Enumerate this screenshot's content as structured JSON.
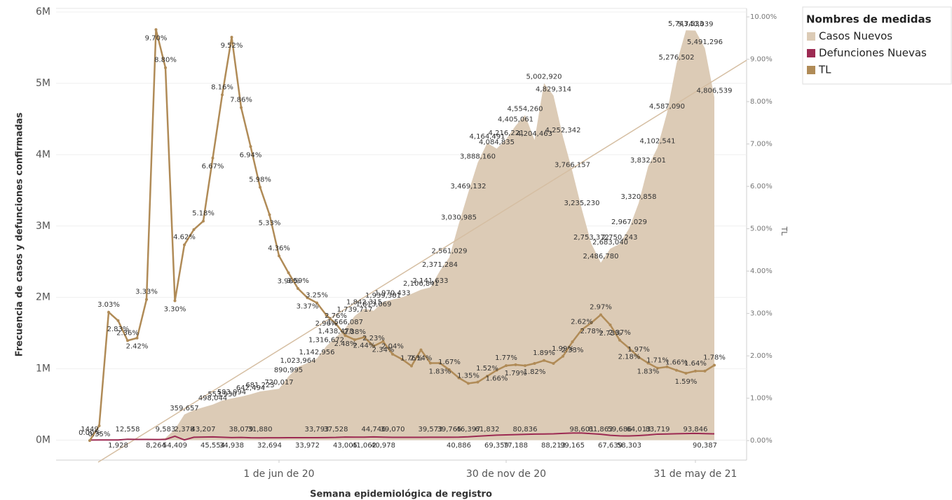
{
  "chart_data": {
    "type": "combo",
    "x_label": "Semana epidemiológica de registro",
    "y_label": "Frecuencia de casos y defunciones confirmadas",
    "y2_label": "TL",
    "categories": [
      null,
      null,
      null,
      null,
      null,
      null,
      null,
      null,
      null,
      null,
      null,
      null,
      null,
      null,
      null,
      null,
      null,
      null,
      null,
      null,
      "1 de jun de 20",
      null,
      null,
      null,
      null,
      null,
      null,
      null,
      null,
      null,
      null,
      null,
      null,
      null,
      null,
      null,
      null,
      null,
      null,
      null,
      null,
      null,
      null,
      null,
      "30 de nov de 20",
      null,
      null,
      null,
      null,
      null,
      null,
      null,
      null,
      null,
      null,
      null,
      null,
      null,
      null,
      null,
      null,
      null,
      null,
      null,
      "31 de may de 21",
      null,
      null
    ],
    "ylim": [
      -280000,
      6050000
    ],
    "yticks": [
      {
        "value": 0,
        "label": "0M"
      },
      {
        "value": 1000000,
        "label": "1M"
      },
      {
        "value": 2000000,
        "label": "2M"
      },
      {
        "value": 3000000,
        "label": "3M"
      },
      {
        "value": 4000000,
        "label": "4M"
      },
      {
        "value": 5000000,
        "label": "5M"
      },
      {
        "value": 6000000,
        "label": "6M"
      }
    ],
    "y2lim": [
      -0.46,
      10.2
    ],
    "y2ticks": [
      {
        "value": 0,
        "label": "0.00%"
      },
      {
        "value": 1,
        "label": "1.00%"
      },
      {
        "value": 2,
        "label": "2.00%"
      },
      {
        "value": 3,
        "label": "3.00%"
      },
      {
        "value": 4,
        "label": "4.00%"
      },
      {
        "value": 5,
        "label": "5.00%"
      },
      {
        "value": 6,
        "label": "6.00%"
      },
      {
        "value": 7,
        "label": "7.00%"
      },
      {
        "value": 8,
        "label": "8.00%"
      },
      {
        "value": 9,
        "label": "9.00%"
      },
      {
        "value": 10,
        "label": "10.00%"
      }
    ],
    "grid": true,
    "legend": {
      "title": "Nombres de medidas",
      "position": "right"
    },
    "series": [
      {
        "name": "Casos Nuevos",
        "type": "area",
        "color": "#dccbb6",
        "values": [
          100,
          300,
          800,
          1500,
          2500,
          4000,
          6000,
          10000,
          30000,
          150000,
          359657,
          420000,
          460000,
          498044,
          553930,
          583994,
          610000,
          642494,
          681223,
          700000,
          720017,
          890995,
          1023964,
          1080000,
          1142956,
          1316672,
          1438478,
          1566087,
          1739717,
          1842315,
          1813069,
          1939381,
          1970433,
          2000000,
          2050000,
          2106841,
          2141633,
          2371284,
          2561029,
          3030985,
          3469132,
          3888160,
          4164491,
          4084835,
          4216221,
          4405061,
          4554260,
          4204463,
          5002920,
          4829314,
          4252342,
          3766157,
          3235230,
          2753372,
          2486780,
          2683040,
          2750243,
          2967029,
          3320858,
          3832501,
          4102541,
          4587090,
          5276502,
          5743533,
          5740039,
          5491296,
          4806539
        ],
        "value_labels": [
          null,
          null,
          null,
          null,
          null,
          null,
          null,
          null,
          null,
          null,
          "359,657",
          null,
          null,
          "498,044",
          "553,930",
          "583,994",
          null,
          "642,494",
          "681,223",
          null,
          "720,017",
          "890,995",
          "1,023,964",
          null,
          "1,142,956",
          "1,316,672",
          "1,438,478",
          "1,566,087",
          "1,739,717",
          "1,842,315",
          "1,813,069",
          "1,939,381",
          "1,970,433",
          null,
          null,
          "2,106,841",
          "2,141,633",
          "2,371,284",
          "2,561,029",
          "3,030,985",
          "3,469,132",
          "3,888,160",
          "4,164,491",
          "4,084,835",
          "4,216,221",
          "4,405,061",
          "4,554,260",
          "4,204,463",
          "5,002,920",
          "4,829,314",
          "4,252,342",
          "3,766,157",
          "3,235,230",
          "2,753,372",
          "2,486,780",
          "2,683,040",
          "2,750,243",
          "2,967,029",
          "3,320,858",
          "3,832,501",
          "4,102,541",
          "4,587,090",
          "5,276,502",
          "5,743,533",
          "5,740,039",
          "5,491,296",
          "4,806,539"
        ]
      },
      {
        "name": "Defunciones Nuevas",
        "type": "line",
        "color": "#9c2a52",
        "values": [
          1449,
          1600,
          1800,
          1928,
          12558,
          10000,
          9000,
          8264,
          9583,
          54409,
          2378,
          40000,
          43207,
          45554,
          40000,
          34938,
          38079,
          33000,
          31880,
          32694,
          33000,
          33500,
          33800,
          33972,
          33793,
          35000,
          37528,
          43005,
          42000,
          41062,
          44746,
          40978,
          39070,
          39200,
          39300,
          39400,
          39573,
          39600,
          39765,
          40886,
          46397,
          55000,
          61832,
          69359,
          73000,
          77188,
          80836,
          84000,
          86000,
          88213,
          94000,
          99165,
          98601,
          90000,
          81863,
          67639,
          59686,
          58303,
          64013,
          72000,
          83719,
          86000,
          89000,
          92000,
          93846,
          90387,
          88000
        ],
        "value_labels": [
          "1449",
          null,
          null,
          "1,928",
          "12,558",
          null,
          null,
          "8,264",
          "9,583",
          "54,409",
          "2,378",
          null,
          "43,207",
          "45,554",
          null,
          "34,938",
          "38,079",
          null,
          "31,880",
          "32,694",
          null,
          null,
          null,
          "33,972",
          "33,793",
          null,
          "37,528",
          "43,005",
          null,
          "41,062",
          "44,746",
          "40,978",
          "39,070",
          null,
          null,
          null,
          "39,573",
          null,
          "39,765",
          "40,886",
          "46,397",
          null,
          "61,832",
          "69,359",
          null,
          "77,188",
          "80,836",
          null,
          null,
          "88,213",
          null,
          "99,165",
          "98,601",
          null,
          "81,863",
          "67,639",
          "59,686",
          "58,303",
          "64,013",
          null,
          "83,719",
          null,
          null,
          null,
          "93,846",
          "90,387",
          null
        ]
      },
      {
        "name": "TL",
        "type": "line",
        "axis": "y2",
        "color": "#b08b57",
        "values": [
          0,
          0.35,
          3.03,
          2.83,
          2.36,
          2.42,
          3.33,
          9.7,
          8.8,
          3.3,
          4.62,
          4.98,
          5.18,
          6.67,
          8.16,
          9.52,
          7.86,
          6.94,
          5.98,
          5.33,
          4.36,
          3.96,
          3.59,
          3.37,
          3.25,
          2.96,
          2.76,
          2.48,
          2.38,
          2.44,
          2.23,
          2.34,
          2.04,
          1.92,
          1.76,
          2.14,
          1.83,
          1.83,
          1.67,
          1.48,
          1.35,
          1.38,
          1.52,
          1.66,
          1.77,
          1.79,
          1.77,
          1.82,
          1.89,
          1.82,
          1.99,
          2.33,
          2.62,
          2.78,
          2.97,
          2.73,
          2.37,
          2.18,
          1.97,
          1.83,
          1.71,
          1.74,
          1.66,
          1.59,
          1.64,
          1.64,
          1.78
        ],
        "value_labels": [
          "0.00%",
          "0.35%",
          "3.03%",
          "2.83%",
          "2.36%",
          "2.42%",
          "3.33%",
          "9.70%",
          "8.80%",
          "3.30%",
          "4.62%",
          null,
          "5.18%",
          "6.67%",
          "8.16%",
          "9.52%",
          "7.86%",
          "6.94%",
          "5.98%",
          "5.33%",
          "4.36%",
          "3.96%",
          "3.59%",
          "3.37%",
          "3.25%",
          "2.96%",
          "2.76%",
          "2.48%",
          "2.38%",
          "2.44%",
          "2.23%",
          "2.34%",
          "2.04%",
          null,
          "1.76%",
          "2.14%",
          null,
          "1.83%",
          "1.67%",
          null,
          "1.35%",
          null,
          "1.52%",
          "1.66%",
          "1.77%",
          "1.79%",
          null,
          "1.82%",
          "1.89%",
          null,
          "1.99%",
          "2.33%",
          "2.62%",
          "2.78%",
          "2.97%",
          "2.73%",
          "2.37%",
          "2.18%",
          "1.97%",
          "1.83%",
          "1.71%",
          null,
          "1.66%",
          "1.59%",
          "1.64%",
          null,
          "1.78%"
        ]
      }
    ]
  }
}
